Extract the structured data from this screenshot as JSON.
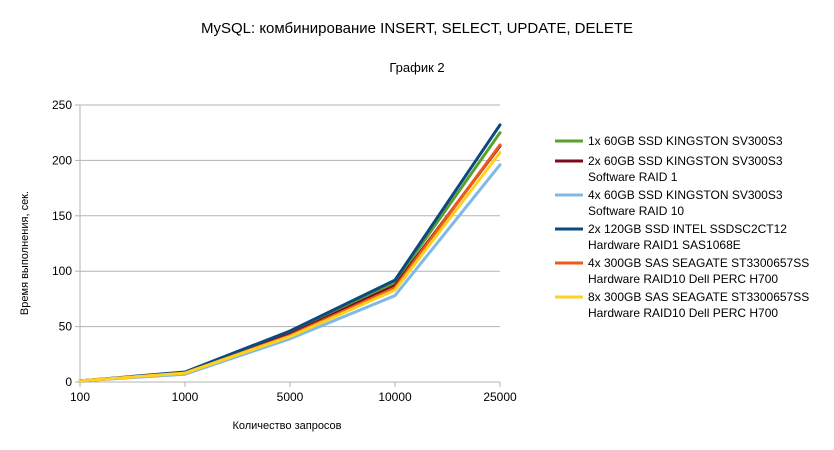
{
  "chart_data": {
    "type": "line",
    "title": "MySQL: комбинирование INSERT, SELECT, UPDATE, DELETE",
    "subtitle": "График 2",
    "xlabel": "Количество запросов",
    "ylabel": "Время выполнения, сек.",
    "categories": [
      "100",
      "1000",
      "5000",
      "10000",
      "25000"
    ],
    "ylim": [
      0,
      250
    ],
    "yticks": [
      "0",
      "50",
      "100",
      "150",
      "200",
      "250"
    ],
    "grid": "horizontal",
    "legend_position": "right",
    "series": [
      {
        "name_lines": [
          "1x 60GB SSD KINGSTON SV300S3"
        ],
        "color": "#5aa02c",
        "values": [
          1,
          8,
          45,
          90,
          225
        ]
      },
      {
        "name_lines": [
          "2x 60GB SSD KINGSTON SV300S3",
          "Software RAID 1"
        ],
        "color": "#7b0a1c",
        "values": [
          1,
          8,
          43,
          87,
          213
        ]
      },
      {
        "name_lines": [
          "4x 60GB SSD KINGSTON SV300S3",
          "Software RAID 10"
        ],
        "color": "#7fb9e6",
        "values": [
          1,
          7,
          39,
          78,
          196
        ]
      },
      {
        "name_lines": [
          "2x 120GB SSD INTEL SSDSC2CT12",
          "Hardware RAID1 SAS1068E"
        ],
        "color": "#0b4a80",
        "values": [
          1,
          9,
          46,
          92,
          232
        ]
      },
      {
        "name_lines": [
          "4x 300GB SAS SEAGATE ST3300657SS",
          "Hardware RAID10 Dell PERC H700"
        ],
        "color": "#ee5a1b",
        "values": [
          1,
          8,
          42,
          85,
          214
        ]
      },
      {
        "name_lines": [
          "8x 300GB SAS SEAGATE ST3300657SS",
          "Hardware RAID10 Dell PERC H700"
        ],
        "color": "#ffd21f",
        "values": [
          1,
          8,
          41,
          83,
          207
        ]
      }
    ]
  }
}
